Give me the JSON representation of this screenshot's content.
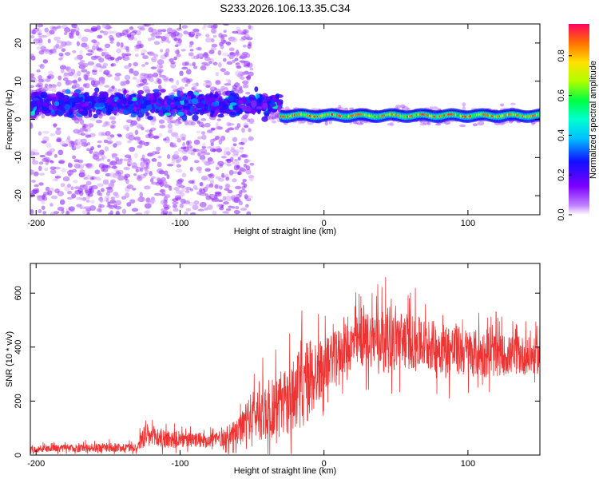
{
  "title": "S233.2026.106.13.35.C34",
  "colorbar": {
    "label": "Normalized spectral amplitude",
    "ticks": [
      "0.0",
      "0.2",
      "0.4",
      "0.6",
      "0.8"
    ],
    "tick_values": [
      0.0,
      0.2,
      0.4,
      0.6,
      0.8
    ],
    "range": [
      0,
      0.96
    ]
  },
  "chart_data": [
    {
      "type": "heatmap",
      "xlabel": "Height of straight line (km)",
      "ylabel": "Frequency (Hz)",
      "xlim": [
        -204,
        150
      ],
      "ylim": [
        -25,
        25
      ],
      "xticks": [
        "-200",
        "-100",
        "0",
        "100"
      ],
      "xtick_values": [
        -200,
        -100,
        0,
        100
      ],
      "yticks": [
        "-20",
        "-10",
        "0",
        "10",
        "20"
      ],
      "ytick_values": [
        -20,
        -10,
        0,
        10,
        20
      ],
      "description_points": {
        "scattered_noise_region": [
          -204,
          -60
        ],
        "dominant_band_hz": 1,
        "strong_signal_start_km": -30
      },
      "colormap": "rainbow (purple-blue-cyan-green-yellow-red)"
    },
    {
      "type": "line",
      "xlabel": "Height of straight line (km)",
      "ylabel": "SNR (10 * v/v)",
      "xlim": [
        -204,
        150
      ],
      "ylim": [
        0,
        710
      ],
      "xticks": [
        "-200",
        "-100",
        "0",
        "100"
      ],
      "xtick_values": [
        -200,
        -100,
        0,
        100
      ],
      "yticks": [
        "0",
        "200",
        "400",
        "600"
      ],
      "ytick_values": [
        0,
        200,
        400,
        600
      ],
      "color": "#ee3333",
      "envelope": {
        "x": [
          -204,
          -180,
          -150,
          -130,
          -125,
          -100,
          -80,
          -60,
          -50,
          -40,
          -30,
          -20,
          -10,
          0,
          10,
          20,
          30,
          40,
          50,
          60,
          70,
          80,
          90,
          100,
          110,
          120,
          130,
          140,
          150
        ],
        "mean": [
          22,
          25,
          28,
          28,
          70,
          55,
          55,
          80,
          150,
          160,
          190,
          230,
          280,
          330,
          380,
          410,
          430,
          440,
          430,
          420,
          410,
          400,
          390,
          380,
          375,
          370,
          370,
          368,
          365
        ],
        "spread": [
          15,
          18,
          20,
          20,
          60,
          35,
          35,
          60,
          110,
          140,
          160,
          180,
          200,
          120,
          110,
          120,
          130,
          140,
          140,
          130,
          120,
          120,
          120,
          110,
          110,
          100,
          90,
          90,
          80
        ]
      }
    }
  ]
}
